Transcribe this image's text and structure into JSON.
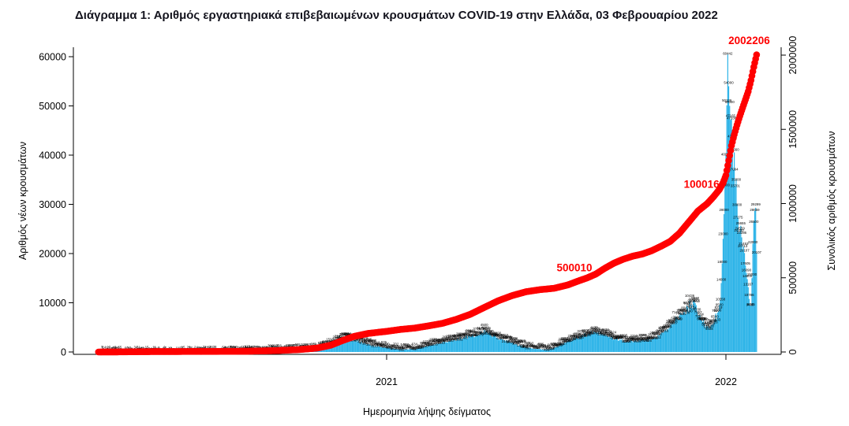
{
  "chart_data": {
    "type": "bar",
    "title": "Διάγραμμα 1: Αριθμός εργαστηριακά επιβεβαιωμένων κρουσμάτων COVID-19 στην Ελλάδα, 03 Φεβρουαρίου 2022",
    "xlabel": "Ημερομηνία λήψης δείγματος",
    "ylabel_left": "Αριθμός νέων κρουσμάτων",
    "ylabel_right": "Συνολικός αριθμός κρουσμάτων",
    "x_ticks": [
      {
        "label": "2021",
        "day": 310
      },
      {
        "label": "2022",
        "day": 675
      }
    ],
    "y_left": {
      "max": 60000,
      "ticks": [
        0,
        10000,
        20000,
        30000,
        40000,
        50000,
        60000
      ]
    },
    "y_right": {
      "max": 2000000,
      "ticks": [
        0,
        500000,
        1000000,
        1500000,
        2000000
      ]
    },
    "colors": {
      "bars": "#2eb4e8",
      "cumulative": "#ff0000",
      "value_labels": "#000000",
      "annotations": "#ff0000"
    },
    "series": {
      "daily_new_cases": {
        "name": "Αριθμός νέων κρουσμάτων",
        "kind": "bar",
        "axis": "left",
        "points": [
          [
            2,
            5
          ],
          [
            9,
            18
          ],
          [
            16,
            45
          ],
          [
            23,
            65
          ],
          [
            30,
            60
          ],
          [
            37,
            45
          ],
          [
            44,
            28
          ],
          [
            51,
            18
          ],
          [
            58,
            12
          ],
          [
            65,
            9
          ],
          [
            72,
            8
          ],
          [
            79,
            10
          ],
          [
            86,
            13
          ],
          [
            93,
            16
          ],
          [
            100,
            20
          ],
          [
            107,
            26
          ],
          [
            114,
            32
          ],
          [
            121,
            36
          ],
          [
            128,
            42
          ],
          [
            135,
            52
          ],
          [
            142,
            65
          ],
          [
            149,
            85
          ],
          [
            156,
            115
          ],
          [
            163,
            155
          ],
          [
            170,
            195
          ],
          [
            177,
            235
          ],
          [
            184,
            275
          ],
          [
            191,
            315
          ],
          [
            198,
            355
          ],
          [
            205,
            400
          ],
          [
            212,
            430
          ],
          [
            219,
            465
          ],
          [
            226,
            510
          ],
          [
            233,
            620
          ],
          [
            240,
            850
          ],
          [
            247,
            1300
          ],
          [
            254,
            1900
          ],
          [
            261,
            2600
          ],
          [
            266,
            3000
          ],
          [
            270,
            2800
          ],
          [
            275,
            2400
          ],
          [
            282,
            2000
          ],
          [
            289,
            1600
          ],
          [
            296,
            1250
          ],
          [
            303,
            1050
          ],
          [
            310,
            920
          ],
          [
            317,
            680
          ],
          [
            324,
            560
          ],
          [
            331,
            520
          ],
          [
            338,
            620
          ],
          [
            345,
            820
          ],
          [
            352,
            1150
          ],
          [
            359,
            1420
          ],
          [
            366,
            1650
          ],
          [
            373,
            1950
          ],
          [
            380,
            2350
          ],
          [
            387,
            2650
          ],
          [
            394,
            2950
          ],
          [
            401,
            3200
          ],
          [
            408,
            3450
          ],
          [
            412,
            3900
          ],
          [
            415,
            4500
          ],
          [
            418,
            4200
          ],
          [
            422,
            3600
          ],
          [
            429,
            2900
          ],
          [
            436,
            2400
          ],
          [
            443,
            2000
          ],
          [
            450,
            1550
          ],
          [
            457,
            1150
          ],
          [
            464,
            820
          ],
          [
            471,
            620
          ],
          [
            478,
            520
          ],
          [
            485,
            560
          ],
          [
            492,
            950
          ],
          [
            499,
            1650
          ],
          [
            506,
            2350
          ],
          [
            513,
            2850
          ],
          [
            520,
            3250
          ],
          [
            527,
            3650
          ],
          [
            534,
            4050
          ],
          [
            541,
            3700
          ],
          [
            548,
            3200
          ],
          [
            555,
            2700
          ],
          [
            562,
            2400
          ],
          [
            569,
            2200
          ],
          [
            576,
            2250
          ],
          [
            583,
            2350
          ],
          [
            590,
            2550
          ],
          [
            597,
            2950
          ],
          [
            604,
            3450
          ],
          [
            611,
            4300
          ],
          [
            615,
            5455
          ],
          [
            618,
            6200
          ],
          [
            622,
            7000
          ],
          [
            626,
            7862
          ],
          [
            630,
            8242
          ],
          [
            634,
            9100
          ],
          [
            638,
            9600
          ],
          [
            641,
            10442
          ],
          [
            644,
            8200
          ],
          [
            648,
            6800
          ],
          [
            652,
            5800
          ],
          [
            656,
            5200
          ],
          [
            660,
            5600
          ],
          [
            663,
            6500
          ],
          [
            666,
            8000
          ],
          [
            668,
            9500
          ],
          [
            670,
            14000
          ],
          [
            671,
            18000
          ],
          [
            672,
            23000
          ],
          [
            673,
            28000
          ],
          [
            674,
            34000
          ],
          [
            675,
            40000
          ],
          [
            676,
            50126
          ],
          [
            677,
            60442
          ],
          [
            678,
            54000
          ],
          [
            679,
            50000
          ],
          [
            680,
            47165
          ],
          [
            682,
            43412
          ],
          [
            684,
            40560
          ],
          [
            686,
            35000
          ],
          [
            687,
            30000
          ],
          [
            688,
            27275
          ],
          [
            690,
            24559
          ],
          [
            692,
            23286
          ],
          [
            694,
            21453
          ],
          [
            695,
            20107
          ],
          [
            696,
            17605
          ],
          [
            697,
            16090
          ],
          [
            698,
            14800
          ],
          [
            699,
            13167
          ],
          [
            700,
            10786
          ],
          [
            701,
            9488
          ],
          [
            702,
            9345
          ],
          [
            703,
            15000
          ],
          [
            704,
            22000
          ],
          [
            705,
            26500
          ],
          [
            706,
            28659
          ],
          [
            707,
            29299
          ],
          [
            708,
            20107
          ]
        ]
      },
      "cumulative_cases": {
        "name": "Συνολικός αριθμός κρουσμάτων",
        "kind": "line",
        "axis": "right",
        "points": [
          [
            0,
            0
          ],
          [
            20,
            500
          ],
          [
            40,
            1800
          ],
          [
            60,
            2800
          ],
          [
            80,
            3100
          ],
          [
            100,
            3400
          ],
          [
            130,
            3900
          ],
          [
            160,
            5000
          ],
          [
            190,
            9000
          ],
          [
            215,
            16000
          ],
          [
            235,
            26000
          ],
          [
            250,
            46000
          ],
          [
            262,
            76000
          ],
          [
            275,
            105000
          ],
          [
            290,
            125000
          ],
          [
            310,
            139000
          ],
          [
            325,
            152000
          ],
          [
            340,
            161000
          ],
          [
            355,
            176000
          ],
          [
            370,
            193000
          ],
          [
            385,
            220000
          ],
          [
            400,
            254000
          ],
          [
            415,
            300000
          ],
          [
            430,
            345000
          ],
          [
            445,
            380000
          ],
          [
            460,
            406000
          ],
          [
            475,
            420000
          ],
          [
            490,
            429000
          ],
          [
            505,
            452000
          ],
          [
            516,
            478000
          ],
          [
            526,
            500010
          ],
          [
            535,
            525000
          ],
          [
            545,
            565000
          ],
          [
            555,
            600000
          ],
          [
            565,
            626000
          ],
          [
            575,
            646000
          ],
          [
            585,
            660000
          ],
          [
            595,
            682000
          ],
          [
            605,
            712000
          ],
          [
            615,
            745000
          ],
          [
            625,
            800000
          ],
          [
            635,
            875000
          ],
          [
            645,
            950000
          ],
          [
            655,
            1000163
          ],
          [
            662,
            1048000
          ],
          [
            668,
            1095000
          ],
          [
            672,
            1140000
          ],
          [
            675,
            1190000
          ],
          [
            678,
            1290000
          ],
          [
            681,
            1390000
          ],
          [
            684,
            1465000
          ],
          [
            687,
            1530000
          ],
          [
            690,
            1590000
          ],
          [
            693,
            1645000
          ],
          [
            696,
            1700000
          ],
          [
            699,
            1755000
          ],
          [
            702,
            1830000
          ],
          [
            705,
            1920000
          ],
          [
            708,
            2002206
          ]
        ]
      }
    },
    "annotations": [
      {
        "text": "500010",
        "day": 512,
        "value": 545000
      },
      {
        "text": "1000163",
        "day": 652,
        "value": 1105000
      },
      {
        "text": "2002206",
        "day": 700,
        "value": 2075000
      }
    ]
  }
}
